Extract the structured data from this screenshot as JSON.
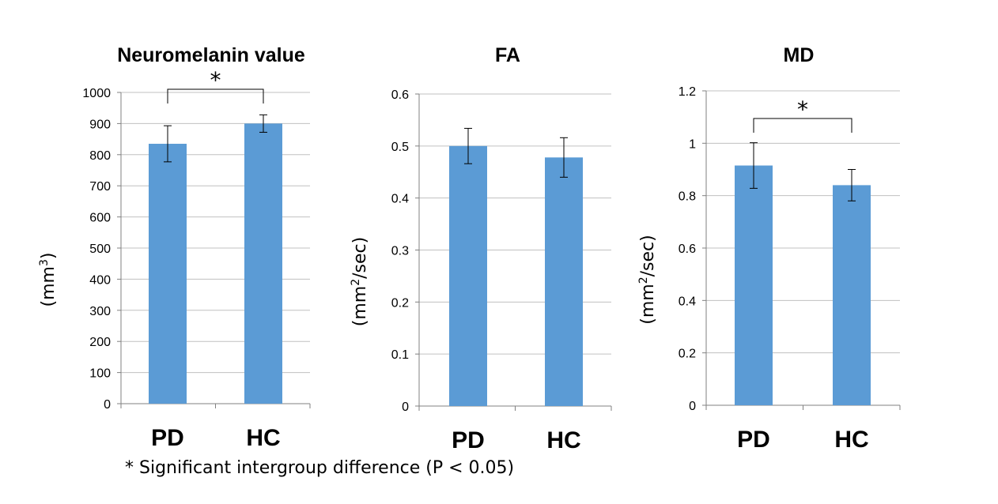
{
  "footnote": "* Significant intergroup difference (P < 0.05)",
  "colors": {
    "bar": "#5b9bd5",
    "grid": "#c0c0c0",
    "axis": "#808080",
    "text": "#000000"
  },
  "chart_data": [
    {
      "type": "bar",
      "title": "Neuromelanin value",
      "ylabel": "(mm3)",
      "ylabel_base": "(mm",
      "ylabel_sup": "3",
      "ylabel_tail": ")",
      "categories": [
        "PD",
        "HC"
      ],
      "values": [
        835,
        900
      ],
      "errors": [
        58,
        28
      ],
      "ylim": [
        0,
        1000
      ],
      "yticks": [
        0,
        100,
        200,
        300,
        400,
        500,
        600,
        700,
        800,
        900,
        1000
      ],
      "ytick_labels": [
        "0",
        "100",
        "200",
        "300",
        "400",
        "500",
        "600",
        "700",
        "800",
        "900",
        "1000"
      ],
      "grid": true,
      "significance": "*"
    },
    {
      "type": "bar",
      "title": "FA",
      "ylabel": "(mm2/sec)",
      "ylabel_base": "(mm",
      "ylabel_sup": "2",
      "ylabel_tail": "/sec)",
      "categories": [
        "PD",
        "HC"
      ],
      "values": [
        0.5,
        0.478
      ],
      "errors": [
        0.034,
        0.038
      ],
      "ylim": [
        0,
        0.6
      ],
      "yticks": [
        0,
        0.1,
        0.2,
        0.3,
        0.4,
        0.5,
        0.6
      ],
      "ytick_labels": [
        "0",
        "0.1",
        "0.2",
        "0.3",
        "0.4",
        "0.5",
        "0.6"
      ],
      "grid": true,
      "significance": null
    },
    {
      "type": "bar",
      "title": "MD",
      "ylabel": "(mm2/sec)",
      "ylabel_base": "(mm",
      "ylabel_sup": "2",
      "ylabel_tail": "/sec)",
      "categories": [
        "PD",
        "HC"
      ],
      "values": [
        0.915,
        0.84
      ],
      "errors": [
        0.087,
        0.06
      ],
      "ylim": [
        0,
        1.2
      ],
      "yticks": [
        0,
        0.2,
        0.4,
        0.6,
        0.8,
        1.0,
        1.2
      ],
      "ytick_labels": [
        "0",
        "0.2",
        "0.4",
        "0.6",
        "0.8",
        "1",
        "1.2"
      ],
      "grid": true,
      "significance": "*"
    }
  ]
}
